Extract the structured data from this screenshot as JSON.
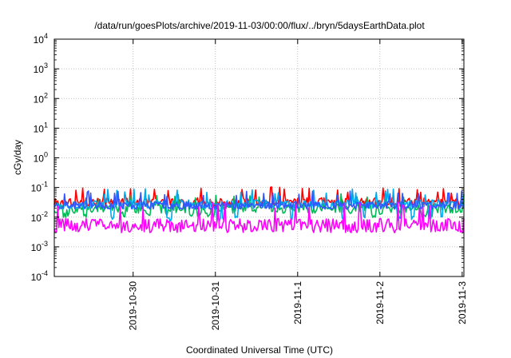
{
  "chart_data": {
    "type": "line",
    "title": "/data/run/goesPlots/archive/2019-11-03/00:00/flux/../bryn/5daysEarthData.plot",
    "xlabel": "Coordinated Universal Time (UTC)",
    "ylabel": "cGy/day",
    "yscale": "log",
    "ylim_exp": [
      -4,
      4
    ],
    "ytick_exponents": [
      -4,
      -3,
      -2,
      -1,
      0,
      1,
      2,
      3,
      4
    ],
    "ytick_base": "10",
    "xlim": [
      "2019-10-29T01:00",
      "2019-11-03T00:30"
    ],
    "xticks": [
      {
        "label": "2019-10-30",
        "date": "2019-10-30T00:00"
      },
      {
        "label": "2019-10-31",
        "date": "2019-10-31T00:00"
      },
      {
        "label": "2019-11-1",
        "date": "2019-11-01T00:00"
      },
      {
        "label": "2019-11-2",
        "date": "2019-11-02T00:00"
      },
      {
        "label": "2019-11-3",
        "date": "2019-11-03T00:00"
      }
    ],
    "grid": true,
    "series": [
      {
        "color": "#ff0000",
        "base": 0.032,
        "amp": 0.35,
        "spike": 0.08,
        "dips": false,
        "seed": 3
      },
      {
        "color": "#00bb55",
        "base": 0.02,
        "amp": 0.4,
        "spike": 0.05,
        "dips": true,
        "dipLevel": 0.012,
        "seed": 11
      },
      {
        "color": "#00aaee",
        "base": 0.027,
        "amp": 0.35,
        "spike": 0.07,
        "dips": true,
        "dipLevel": 0.009,
        "seed": 17
      },
      {
        "color": "#3355ff",
        "base": 0.025,
        "amp": 0.3,
        "spike": 0.06,
        "dips": false,
        "seed": 23
      },
      {
        "color": "#ff00ff",
        "base": 0.0052,
        "amp": 0.55,
        "spike": 0.025,
        "dips": false,
        "seed": 31
      }
    ]
  }
}
